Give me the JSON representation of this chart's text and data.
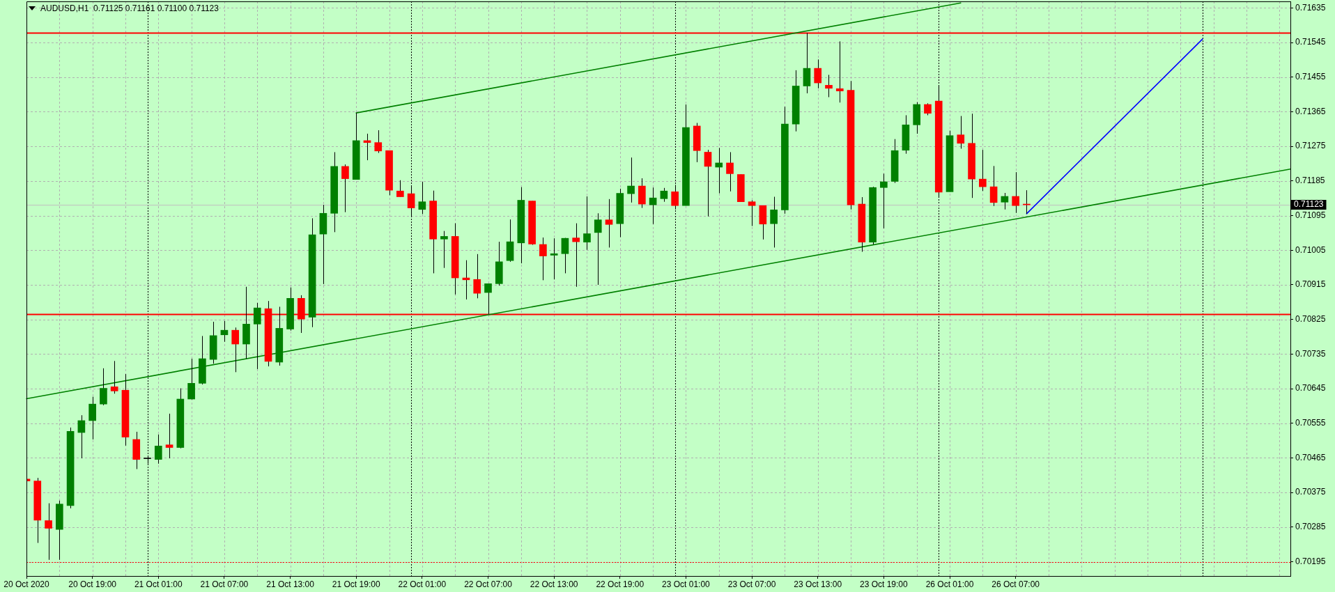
{
  "chart_data": {
    "type": "candlestick",
    "title": "AUDUSD,H1  0.71125 0.71161 0.71100 0.71123",
    "categories": [
      "20 Oct 2020",
      null,
      null,
      null,
      null,
      null,
      "20 Oct 19:00",
      null,
      null,
      null,
      null,
      null,
      "21 Oct 01:00",
      null,
      null,
      null,
      null,
      null,
      "21 Oct 07:00",
      null,
      null,
      null,
      null,
      null,
      "21 Oct 13:00",
      null,
      null,
      null,
      null,
      null,
      "21 Oct 19:00",
      null,
      null,
      null,
      null,
      null,
      "22 Oct 01:00",
      null,
      null,
      null,
      null,
      null,
      "22 Oct 07:00",
      null,
      null,
      null,
      null,
      null,
      "22 Oct 13:00",
      null,
      null,
      null,
      null,
      null,
      "22 Oct 19:00",
      null,
      null,
      null,
      null,
      null,
      "23 Oct 01:00",
      null,
      null,
      null,
      null,
      null,
      "23 Oct 07:00",
      null,
      null,
      null,
      null,
      null,
      "23 Oct 13:00",
      null,
      null,
      null,
      null,
      null,
      "23 Oct 19:00",
      null,
      null,
      null,
      null,
      null,
      "26 Oct 01:00",
      null,
      null,
      null,
      null,
      null,
      "26 Oct 07:00",
      null,
      null,
      null,
      null,
      null,
      null,
      null,
      null,
      null,
      null,
      null,
      null,
      null,
      null,
      null,
      null,
      null,
      null,
      null,
      null,
      null,
      null,
      null,
      null,
      null
    ],
    "ohlc": [
      [
        0.7041,
        0.70497,
        0.70393,
        0.70405
      ],
      [
        0.70405,
        0.70413,
        0.70244,
        0.70303
      ],
      [
        0.70302,
        0.70347,
        0.702,
        0.70282
      ],
      [
        0.70279,
        0.70354,
        0.702,
        0.70345
      ],
      [
        0.70341,
        0.70544,
        0.70334,
        0.70534
      ],
      [
        0.70531,
        0.70576,
        0.70464,
        0.70562
      ],
      [
        0.70562,
        0.70624,
        0.70513,
        0.70605
      ],
      [
        0.70605,
        0.70698,
        0.70602,
        0.70646
      ],
      [
        0.7065,
        0.70717,
        0.70632,
        0.70639
      ],
      [
        0.70641,
        0.70683,
        0.70497,
        0.70519
      ],
      [
        0.70513,
        0.70533,
        0.70436,
        0.70461
      ],
      [
        0.70463,
        0.70469,
        0.7045,
        0.70463
      ],
      [
        0.70461,
        0.70526,
        0.7045,
        0.70496
      ],
      [
        0.70499,
        0.7058,
        0.70464,
        0.70492
      ],
      [
        0.70492,
        0.70646,
        0.7049,
        0.70618
      ],
      [
        0.70618,
        0.70723,
        0.70617,
        0.70659
      ],
      [
        0.70659,
        0.70782,
        0.70656,
        0.70723
      ],
      [
        0.70721,
        0.70819,
        0.7071,
        0.70783
      ],
      [
        0.70785,
        0.70821,
        0.70767,
        0.70797
      ],
      [
        0.70797,
        0.70804,
        0.70688,
        0.70761
      ],
      [
        0.70761,
        0.7091,
        0.70723,
        0.70813
      ],
      [
        0.70813,
        0.70868,
        0.70696,
        0.70855
      ],
      [
        0.70853,
        0.70873,
        0.70703,
        0.70716
      ],
      [
        0.70714,
        0.70858,
        0.70705,
        0.70802
      ],
      [
        0.708,
        0.70908,
        0.70796,
        0.7088
      ],
      [
        0.7088,
        0.70888,
        0.7079,
        0.70826
      ],
      [
        0.70831,
        0.71088,
        0.70805,
        0.71045
      ],
      [
        0.71047,
        0.71123,
        0.70917,
        0.71101
      ],
      [
        0.71101,
        0.7126,
        0.71052,
        0.71223
      ],
      [
        0.71223,
        0.71228,
        0.71104,
        0.71191
      ],
      [
        0.71189,
        0.71362,
        0.71189,
        0.7129
      ],
      [
        0.7129,
        0.71308,
        0.71239,
        0.71285
      ],
      [
        0.71285,
        0.71317,
        0.71258,
        0.71263
      ],
      [
        0.71264,
        0.71264,
        0.71148,
        0.71161
      ],
      [
        0.71159,
        0.71187,
        0.71144,
        0.71144
      ],
      [
        0.71152,
        0.71173,
        0.71091,
        0.71115
      ],
      [
        0.71111,
        0.71183,
        0.71099,
        0.71131
      ],
      [
        0.71133,
        0.7116,
        0.70945,
        0.71034
      ],
      [
        0.71034,
        0.71055,
        0.70959,
        0.71041
      ],
      [
        0.71041,
        0.71075,
        0.7089,
        0.70933
      ],
      [
        0.70933,
        0.70979,
        0.70877,
        0.70928
      ],
      [
        0.70929,
        0.70995,
        0.7088,
        0.70893
      ],
      [
        0.70895,
        0.70918,
        0.70839,
        0.70918
      ],
      [
        0.70918,
        0.71027,
        0.70913,
        0.70975
      ],
      [
        0.70978,
        0.71085,
        0.70975,
        0.71027
      ],
      [
        0.71024,
        0.71169,
        0.70971,
        0.71135
      ],
      [
        0.71133,
        0.71133,
        0.71019,
        0.71021
      ],
      [
        0.7102,
        0.71038,
        0.70927,
        0.7099
      ],
      [
        0.70992,
        0.71036,
        0.70929,
        0.70996
      ],
      [
        0.70996,
        0.71037,
        0.70945,
        0.71036
      ],
      [
        0.71037,
        0.71075,
        0.7091,
        0.71027
      ],
      [
        0.71026,
        0.71145,
        0.71006,
        0.71048
      ],
      [
        0.71051,
        0.71101,
        0.70915,
        0.71084
      ],
      [
        0.71084,
        0.71138,
        0.71012,
        0.71072
      ],
      [
        0.71074,
        0.71165,
        0.71039,
        0.71153
      ],
      [
        0.71152,
        0.71246,
        0.71129,
        0.71172
      ],
      [
        0.71172,
        0.71192,
        0.71115,
        0.71125
      ],
      [
        0.71123,
        0.71168,
        0.71073,
        0.71141
      ],
      [
        0.71139,
        0.71167,
        0.71131,
        0.71159
      ],
      [
        0.71157,
        0.71175,
        0.71111,
        0.71121
      ],
      [
        0.71121,
        0.71384,
        0.71121,
        0.71324
      ],
      [
        0.71328,
        0.71336,
        0.71234,
        0.71264
      ],
      [
        0.7126,
        0.71266,
        0.71093,
        0.71223
      ],
      [
        0.71221,
        0.71271,
        0.71153,
        0.71232
      ],
      [
        0.71232,
        0.7126,
        0.71158,
        0.71204
      ],
      [
        0.71202,
        0.71202,
        0.71131,
        0.71131
      ],
      [
        0.71131,
        0.71135,
        0.71068,
        0.71121
      ],
      [
        0.71121,
        0.71121,
        0.71033,
        0.71073
      ],
      [
        0.71074,
        0.71144,
        0.71012,
        0.7111
      ],
      [
        0.7111,
        0.71378,
        0.711,
        0.71333
      ],
      [
        0.71333,
        0.71473,
        0.71314,
        0.71432
      ],
      [
        0.71432,
        0.7157,
        0.71413,
        0.71478
      ],
      [
        0.71478,
        0.71501,
        0.71426,
        0.7144
      ],
      [
        0.71434,
        0.71461,
        0.71403,
        0.71426
      ],
      [
        0.71425,
        0.71548,
        0.71389,
        0.71419
      ],
      [
        0.71421,
        0.71445,
        0.71111,
        0.71123
      ],
      [
        0.71125,
        0.71143,
        0.71001,
        0.71026
      ],
      [
        0.71026,
        0.7117,
        0.7102,
        0.71168
      ],
      [
        0.71168,
        0.71204,
        0.71062,
        0.71183
      ],
      [
        0.71184,
        0.71294,
        0.7118,
        0.71264
      ],
      [
        0.71265,
        0.71356,
        0.71256,
        0.71331
      ],
      [
        0.71331,
        0.7139,
        0.71308,
        0.71384
      ],
      [
        0.71384,
        0.71387,
        0.71356,
        0.71361
      ],
      [
        0.71393,
        0.71433,
        0.71145,
        0.71156
      ],
      [
        0.71157,
        0.71316,
        0.71157,
        0.71303
      ],
      [
        0.71305,
        0.71354,
        0.71269,
        0.71283
      ],
      [
        0.71283,
        0.7136,
        0.71141,
        0.7119
      ],
      [
        0.7119,
        0.71266,
        0.71159,
        0.7117
      ],
      [
        0.7117,
        0.71224,
        0.7112,
        0.71129
      ],
      [
        0.7113,
        0.71154,
        0.71111,
        0.71145
      ],
      [
        0.71145,
        0.71208,
        0.71102,
        0.71121
      ],
      [
        0.71125,
        0.71161,
        0.711,
        0.71123
      ],
      null,
      null,
      null,
      null,
      null,
      null,
      null,
      null,
      null,
      null,
      null,
      null,
      null,
      null,
      null,
      null,
      null,
      null,
      null,
      null,
      null,
      null,
      null,
      null
    ],
    "colors": [
      "#ff0000",
      "#ff0000",
      "#ff0000",
      "#008000",
      "#008000",
      "#008000",
      "#008000",
      "#008000",
      "#ff0000",
      "#ff0000",
      "#ff0000",
      "#000000",
      "#008000",
      "#ff0000",
      "#008000",
      "#008000",
      "#008000",
      "#008000",
      "#008000",
      "#ff0000",
      "#008000",
      "#008000",
      "#ff0000",
      "#008000",
      "#008000",
      "#ff0000",
      "#008000",
      "#008000",
      "#008000",
      "#ff0000",
      "#008000",
      "#ff0000",
      "#ff0000",
      "#ff0000",
      "#ff0000",
      "#ff0000",
      "#008000",
      "#ff0000",
      "#008000",
      "#ff0000",
      "#ff0000",
      "#ff0000",
      "#008000",
      "#008000",
      "#008000",
      "#008000",
      "#ff0000",
      "#ff0000",
      "#008000",
      "#008000",
      "#ff0000",
      "#008000",
      "#008000",
      "#ff0000",
      "#008000",
      "#008000",
      "#ff0000",
      "#008000",
      "#008000",
      "#ff0000",
      "#008000",
      "#ff0000",
      "#ff0000",
      "#008000",
      "#ff0000",
      "#ff0000",
      "#ff0000",
      "#ff0000",
      "#008000",
      "#008000",
      "#008000",
      "#008000",
      "#ff0000",
      "#ff0000",
      "#ff0000",
      "#ff0000",
      "#ff0000",
      "#008000",
      "#008000",
      "#008000",
      "#008000",
      "#008000",
      "#ff0000",
      "#ff0000",
      "#008000",
      "#ff0000",
      "#ff0000",
      "#ff0000",
      "#ff0000",
      "#008000",
      "#ff0000",
      "#ff0000",
      null,
      null,
      null,
      null,
      null,
      null,
      null,
      null,
      null,
      null,
      null,
      null,
      null,
      null,
      null,
      null,
      null,
      null,
      null,
      null,
      null,
      null,
      null,
      null
    ],
    "series": [
      {
        "type": "line",
        "color": "#008000",
        "values": [
          0.70619,
          null,
          null,
          null,
          null,
          null,
          null,
          null,
          null,
          null,
          null,
          null,
          null,
          null,
          null,
          null,
          null,
          null,
          null,
          null,
          null,
          null,
          null,
          null,
          null,
          null,
          null,
          null,
          null,
          null,
          null,
          null,
          null,
          null,
          null,
          null,
          null,
          null,
          null,
          null,
          null,
          null,
          null,
          null,
          null,
          null,
          null,
          null,
          null,
          null,
          null,
          null,
          null,
          null,
          null,
          null,
          null,
          null,
          null,
          null,
          null,
          null,
          null,
          null,
          null,
          null,
          null,
          null,
          null,
          null,
          null,
          null,
          null,
          null,
          null,
          null,
          null,
          null,
          null,
          null,
          null,
          null,
          null,
          null,
          null,
          null,
          null,
          null,
          null,
          null,
          null,
          null,
          null,
          null,
          null,
          null,
          null,
          null,
          null,
          null,
          null,
          null,
          null,
          null,
          null,
          null,
          null,
          null,
          null,
          null,
          null,
          null,
          null,
          null,
          null,
          0.71216
        ]
      },
      {
        "type": "line",
        "color": "#008000",
        "values": [
          null,
          null,
          null,
          null,
          null,
          null,
          null,
          null,
          null,
          null,
          null,
          null,
          null,
          null,
          null,
          null,
          null,
          null,
          null,
          null,
          null,
          null,
          null,
          null,
          null,
          null,
          null,
          null,
          null,
          null,
          0.71362,
          null,
          null,
          null,
          null,
          null,
          null,
          null,
          null,
          null,
          null,
          null,
          null,
          null,
          null,
          null,
          null,
          null,
          null,
          null,
          null,
          null,
          null,
          null,
          null,
          null,
          null,
          null,
          null,
          null,
          null,
          null,
          null,
          null,
          null,
          null,
          null,
          null,
          null,
          null,
          null,
          null,
          null,
          null,
          null,
          null,
          null,
          null,
          null,
          null,
          null,
          null,
          null,
          null,
          null,
          0.71648,
          null,
          null,
          null,
          null,
          null,
          null,
          null,
          null,
          null,
          null,
          null,
          null,
          null,
          null,
          null,
          null,
          null,
          null,
          null,
          null,
          null,
          null,
          null,
          null,
          null,
          null,
          null,
          null,
          null,
          null
        ]
      },
      {
        "type": "line",
        "color": "#0000ff",
        "values": [
          null,
          null,
          null,
          null,
          null,
          null,
          null,
          null,
          null,
          null,
          null,
          null,
          null,
          null,
          null,
          null,
          null,
          null,
          null,
          null,
          null,
          null,
          null,
          null,
          null,
          null,
          null,
          null,
          null,
          null,
          null,
          null,
          null,
          null,
          null,
          null,
          null,
          null,
          null,
          null,
          null,
          null,
          null,
          null,
          null,
          null,
          null,
          null,
          null,
          null,
          null,
          null,
          null,
          null,
          null,
          null,
          null,
          null,
          null,
          null,
          null,
          null,
          null,
          null,
          null,
          null,
          null,
          null,
          null,
          null,
          null,
          null,
          null,
          null,
          null,
          null,
          null,
          null,
          null,
          null,
          null,
          null,
          null,
          null,
          null,
          null,
          null,
          null,
          null,
          null,
          null,
          0.711,
          null,
          null,
          null,
          null,
          null,
          null,
          null,
          null,
          null,
          null,
          null,
          null,
          null,
          null,
          null,
          0.71554,
          null,
          null,
          null,
          null,
          null,
          null,
          null,
          null
        ]
      }
    ],
    "ylim": [
      0.70158,
      0.71652
    ],
    "yticks": [
      0.70195,
      0.70285,
      0.70375,
      0.70465,
      0.70555,
      0.70645,
      0.70735,
      0.70825,
      0.70915,
      0.71005,
      0.71095,
      0.71185,
      0.71275,
      0.71365,
      0.71455,
      0.71545,
      0.71635
    ],
    "grid": true,
    "ref_lines": [
      {
        "axis": "y",
        "value": 0.7157,
        "color": "#ff0000"
      },
      {
        "axis": "y",
        "value": 0.70839,
        "color": "#ff0000"
      },
      {
        "axis": "y",
        "value": 0.70195,
        "color": "#ff0000",
        "line_style": "dotted"
      },
      {
        "axis": "y",
        "value": 0.71123,
        "label": "0.71123",
        "color": "#c0c0c0"
      }
    ]
  }
}
